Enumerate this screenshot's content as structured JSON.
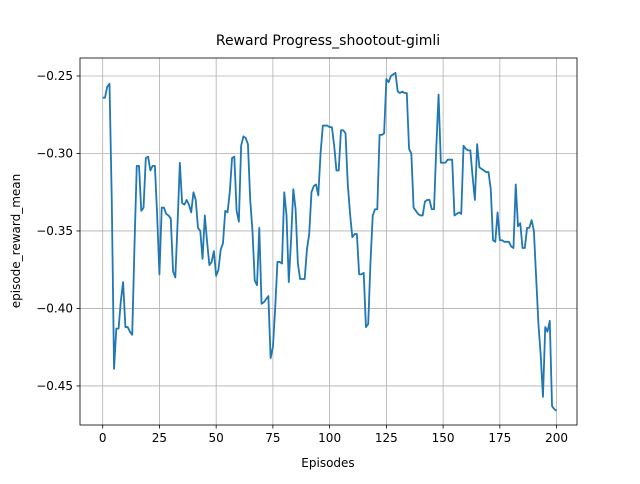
{
  "chart_data": {
    "type": "line",
    "title": "Reward Progress_shootout-gimli",
    "x_label": "Episodes",
    "y_label": "episode_reward_mean",
    "color": "#1f77b4",
    "grid": true,
    "xlim": [
      -10,
      209
    ],
    "ylim": [
      -0.4752,
      -0.2384
    ],
    "xticks": [
      0,
      25,
      50,
      75,
      100,
      125,
      150,
      175,
      200
    ],
    "yticks": [
      {
        "value": -0.45,
        "label": "−0.45"
      },
      {
        "value": -0.4,
        "label": "−0.40"
      },
      {
        "value": -0.35,
        "label": "−0.35"
      },
      {
        "value": -0.3,
        "label": "−0.30"
      },
      {
        "value": -0.25,
        "label": "−0.25"
      }
    ],
    "x": [
      0,
      1,
      2,
      3,
      4,
      5,
      6,
      7,
      8,
      9,
      10,
      11,
      12,
      13,
      14,
      15,
      16,
      17,
      18,
      19,
      20,
      21,
      22,
      23,
      24,
      25,
      26,
      27,
      28,
      29,
      30,
      31,
      32,
      33,
      34,
      35,
      36,
      37,
      38,
      39,
      40,
      41,
      42,
      43,
      44,
      45,
      46,
      47,
      48,
      49,
      50,
      51,
      52,
      53,
      54,
      55,
      56,
      57,
      58,
      59,
      60,
      61,
      62,
      63,
      64,
      65,
      66,
      67,
      68,
      69,
      70,
      71,
      72,
      73,
      74,
      75,
      76,
      77,
      78,
      79,
      80,
      81,
      82,
      83,
      84,
      85,
      86,
      87,
      88,
      89,
      90,
      91,
      92,
      93,
      94,
      95,
      96,
      97,
      98,
      99,
      100,
      101,
      102,
      103,
      104,
      105,
      106,
      107,
      108,
      109,
      110,
      111,
      112,
      113,
      114,
      115,
      116,
      117,
      118,
      119,
      120,
      121,
      122,
      123,
      124,
      125,
      126,
      127,
      128,
      129,
      130,
      131,
      132,
      133,
      134,
      135,
      136,
      137,
      138,
      139,
      140,
      141,
      142,
      143,
      144,
      145,
      146,
      147,
      148,
      149,
      150,
      151,
      152,
      153,
      154,
      155,
      156,
      157,
      158,
      159,
      160,
      161,
      162,
      163,
      164,
      165,
      166,
      167,
      168,
      169,
      170,
      171,
      172,
      173,
      174,
      175,
      176,
      177,
      178,
      179,
      180,
      181,
      182,
      183,
      184,
      185,
      186,
      187,
      188,
      189,
      190,
      191,
      192,
      193,
      194,
      195,
      196,
      197,
      198,
      199,
      200
    ],
    "values": [
      -0.264,
      -0.264,
      -0.257,
      -0.255,
      -0.33,
      -0.439,
      -0.413,
      -0.413,
      -0.395,
      -0.383,
      -0.412,
      -0.412,
      -0.415,
      -0.417,
      -0.36,
      -0.308,
      -0.308,
      -0.337,
      -0.335,
      -0.303,
      -0.302,
      -0.311,
      -0.308,
      -0.308,
      -0.34,
      -0.378,
      -0.335,
      -0.335,
      -0.339,
      -0.34,
      -0.342,
      -0.376,
      -0.38,
      -0.345,
      -0.306,
      -0.332,
      -0.333,
      -0.33,
      -0.333,
      -0.338,
      -0.325,
      -0.33,
      -0.348,
      -0.35,
      -0.368,
      -0.34,
      -0.357,
      -0.372,
      -0.37,
      -0.363,
      -0.379,
      -0.375,
      -0.362,
      -0.358,
      -0.337,
      -0.338,
      -0.325,
      -0.303,
      -0.302,
      -0.337,
      -0.344,
      -0.295,
      -0.289,
      -0.29,
      -0.294,
      -0.33,
      -0.35,
      -0.382,
      -0.385,
      -0.348,
      -0.397,
      -0.396,
      -0.394,
      -0.392,
      -0.432,
      -0.425,
      -0.4,
      -0.37,
      -0.37,
      -0.371,
      -0.325,
      -0.34,
      -0.383,
      -0.356,
      -0.323,
      -0.336,
      -0.371,
      -0.381,
      -0.381,
      -0.381,
      -0.362,
      -0.352,
      -0.325,
      -0.321,
      -0.32,
      -0.327,
      -0.3,
      -0.282,
      -0.282,
      -0.282,
      -0.283,
      -0.283,
      -0.295,
      -0.311,
      -0.311,
      -0.285,
      -0.285,
      -0.287,
      -0.32,
      -0.339,
      -0.354,
      -0.352,
      -0.352,
      -0.378,
      -0.378,
      -0.377,
      -0.412,
      -0.41,
      -0.37,
      -0.34,
      -0.336,
      -0.336,
      -0.288,
      -0.288,
      -0.287,
      -0.252,
      -0.254,
      -0.25,
      -0.249,
      -0.248,
      -0.26,
      -0.261,
      -0.26,
      -0.261,
      -0.261,
      -0.297,
      -0.3,
      -0.335,
      -0.337,
      -0.339,
      -0.34,
      -0.34,
      -0.331,
      -0.33,
      -0.33,
      -0.336,
      -0.336,
      -0.296,
      -0.262,
      -0.306,
      -0.306,
      -0.306,
      -0.304,
      -0.304,
      -0.304,
      -0.34,
      -0.339,
      -0.338,
      -0.339,
      -0.295,
      -0.297,
      -0.298,
      -0.298,
      -0.315,
      -0.33,
      -0.294,
      -0.309,
      -0.31,
      -0.311,
      -0.312,
      -0.312,
      -0.323,
      -0.356,
      -0.357,
      -0.338,
      -0.356,
      -0.356,
      -0.357,
      -0.357,
      -0.357,
      -0.36,
      -0.361,
      -0.32,
      -0.347,
      -0.345,
      -0.361,
      -0.361,
      -0.348,
      -0.348,
      -0.343,
      -0.35,
      -0.38,
      -0.41,
      -0.43,
      -0.457,
      -0.412,
      -0.415,
      -0.408,
      -0.463,
      -0.465,
      -0.466
    ]
  }
}
